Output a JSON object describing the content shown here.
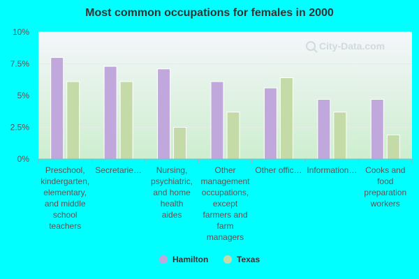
{
  "chart_data": {
    "type": "bar",
    "title": "Most common occupations for females in 2000",
    "xlabel": "",
    "ylabel": "",
    "ylim": [
      0,
      10
    ],
    "yticks": [
      {
        "value": 0,
        "label": "0%"
      },
      {
        "value": 2.5,
        "label": "2.5%"
      },
      {
        "value": 5,
        "label": "5%"
      },
      {
        "value": 7.5,
        "label": "7.5%"
      },
      {
        "value": 10,
        "label": "10%"
      }
    ],
    "categories": [
      "Preschool, kindergarten, elementary, and middle school teachers",
      "Secretarie…",
      "Nursing, psychiatric, and home health aides",
      "Other management occupations, except farmers and farm managers",
      "Other offic…",
      "Information…",
      "Cooks and food preparation workers"
    ],
    "category_lines": [
      [
        "Preschool,",
        "kindergarten,",
        "elementary,",
        "and middle",
        "school",
        "teachers"
      ],
      [
        "Secretarie…"
      ],
      [
        "Nursing,",
        "psychiatric,",
        "and home",
        "health",
        "aides"
      ],
      [
        "Other",
        "management",
        "occupations,",
        "except",
        "farmers and",
        "farm",
        "managers"
      ],
      [
        "Other offic…"
      ],
      [
        "Information…"
      ],
      [
        "Cooks and",
        "food",
        "preparation",
        "workers"
      ]
    ],
    "series": [
      {
        "name": "Hamilton",
        "color": "#c0a8dc",
        "values": [
          8.0,
          7.3,
          7.1,
          6.1,
          5.6,
          4.7,
          4.7
        ]
      },
      {
        "name": "Texas",
        "color": "#c4dba8",
        "values": [
          6.1,
          6.1,
          2.5,
          3.7,
          6.4,
          3.7,
          1.9
        ]
      }
    ],
    "grid": true,
    "legend_position": "bottom-center"
  },
  "watermark": "City-Data.com",
  "colors": {
    "page_background": "#00ffff",
    "plot_gradient_top": "#f4f6fa",
    "plot_gradient_bottom": "#cdeecf",
    "axis": "#aaaaaa"
  }
}
